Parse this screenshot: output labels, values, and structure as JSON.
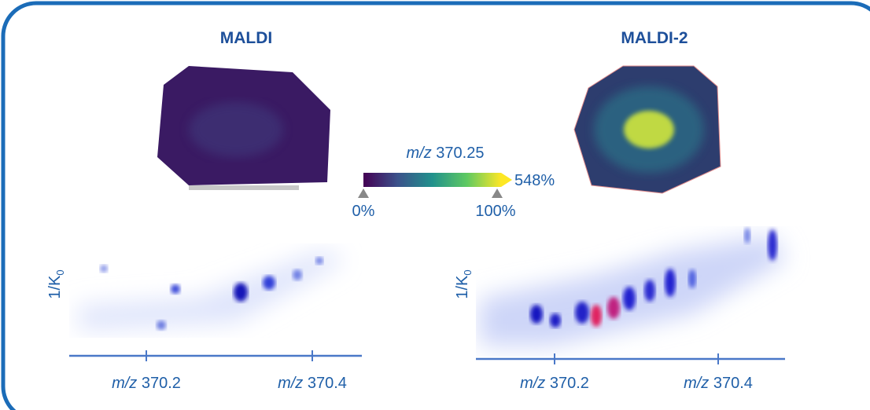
{
  "panels": [
    {
      "title": "MALDI",
      "y_label": "1/K",
      "y_label_sub": "0",
      "x_ticks": [
        {
          "prefix": "m/z",
          "value": "370.2"
        },
        {
          "prefix": "m/z",
          "value": "370.4"
        }
      ]
    },
    {
      "title": "MALDI-2",
      "y_label": "1/K",
      "y_label_sub": "0",
      "x_ticks": [
        {
          "prefix": "m/z",
          "value": "370.2"
        },
        {
          "prefix": "m/z",
          "value": "370.4"
        }
      ]
    }
  ],
  "colorbar": {
    "label_prefix": "m/z",
    "label_value": "370.25",
    "max_label": "548%",
    "low_label": "0%",
    "high_label": "100%"
  }
}
